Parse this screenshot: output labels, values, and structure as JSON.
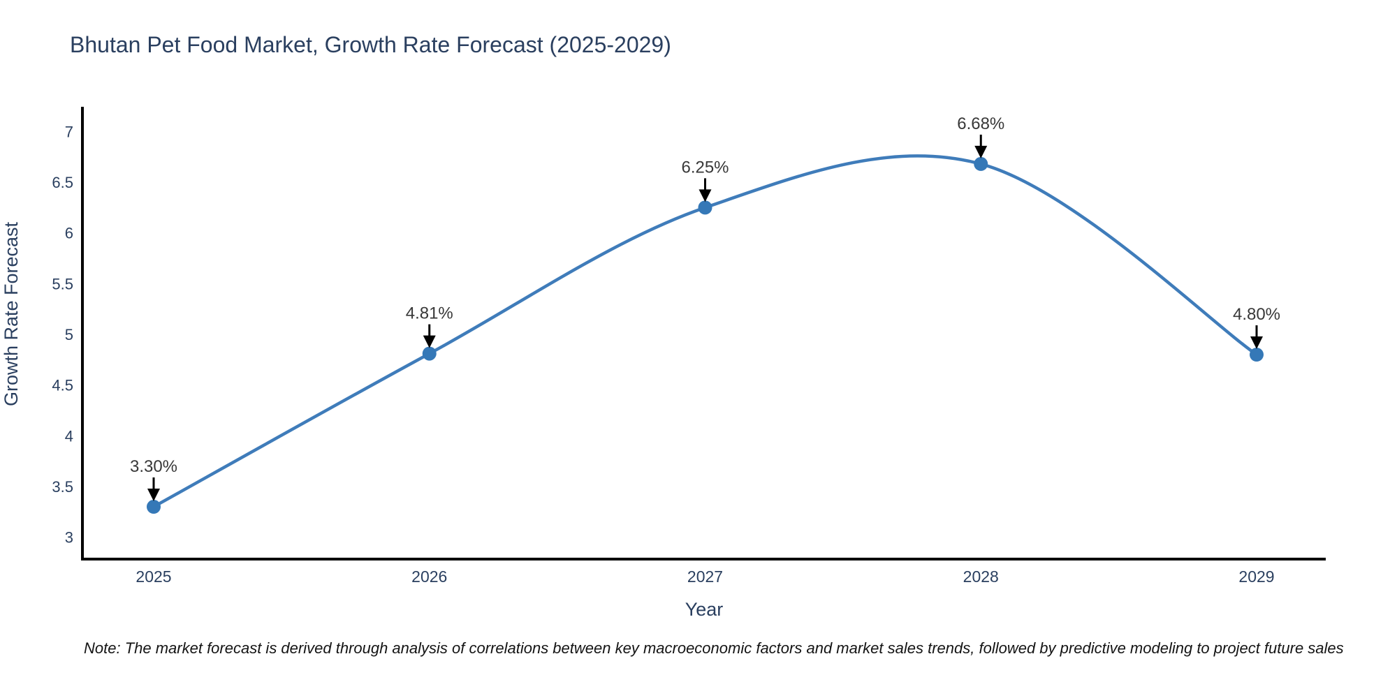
{
  "title": "Bhutan Pet Food Market, Growth Rate Forecast (2025-2029)",
  "note": "Note: The market forecast is derived through analysis of correlations between key macroeconomic factors and market sales trends, followed by predictive modeling to project future sales",
  "chart_data": {
    "type": "line",
    "line_shape": "spline",
    "title": "Bhutan Pet Food Market, Growth Rate Forecast (2025-2029)",
    "xlabel": "Year",
    "ylabel": "Growth Rate Forecast",
    "categories": [
      "2025",
      "2026",
      "2027",
      "2028",
      "2029"
    ],
    "values": [
      3.3,
      4.81,
      6.25,
      6.68,
      4.8
    ],
    "point_labels": [
      "3.30%",
      "4.81%",
      "6.25%",
      "6.68%",
      "4.80%"
    ],
    "ytick_values": [
      3,
      3.5,
      4,
      4.5,
      5,
      5.5,
      6,
      6.5,
      7
    ],
    "ytick_labels": [
      "3",
      "3.5",
      "4",
      "4.5",
      "5",
      "5.5",
      "6",
      "6.5",
      "7"
    ],
    "ylim": [
      2.8,
      7.25
    ],
    "grid": false,
    "legend": "none",
    "markers": "circle",
    "annotation_arrows": true,
    "colors": {
      "line": "#3f7cba",
      "marker": "#3578b7",
      "axis": "#000000",
      "arrow": "#000000",
      "title": "#2a3f5f",
      "tick": "#2a3f5f",
      "annotation": "#383838",
      "background": "#ffffff"
    }
  }
}
